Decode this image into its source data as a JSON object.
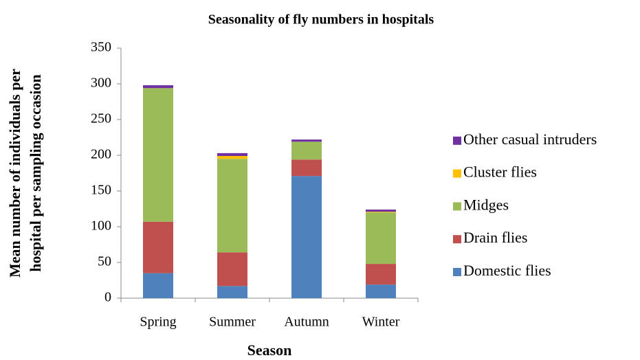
{
  "chart_data": {
    "type": "stacked_bar",
    "title": "Seasonality of fly numbers in hospitals",
    "x_label": "Season",
    "y_label": [
      "Mean number of individuals per",
      "hospital per sampling occasion"
    ],
    "categories": [
      "Spring",
      "Summer",
      "Autumn",
      "Winter"
    ],
    "series": [
      {
        "name": "Domestic flies",
        "color": "#4f81bd",
        "values": [
          35,
          17,
          171,
          19
        ]
      },
      {
        "name": "Drain flies",
        "color": "#c0504d",
        "values": [
          72,
          47,
          23,
          29
        ]
      },
      {
        "name": "Midges",
        "color": "#9bbb59",
        "values": [
          187,
          131,
          25,
          72
        ]
      },
      {
        "name": "Cluster flies",
        "color": "#ffc000",
        "values": [
          0,
          4,
          0,
          1
        ]
      },
      {
        "name": "Other casual intruders",
        "color": "#7030a0",
        "values": [
          4,
          4,
          3,
          3
        ]
      }
    ],
    "ylim": [
      0,
      350
    ],
    "yticks": [
      0,
      50,
      100,
      150,
      200,
      250,
      300,
      350
    ],
    "grid": false,
    "legend": "right"
  }
}
